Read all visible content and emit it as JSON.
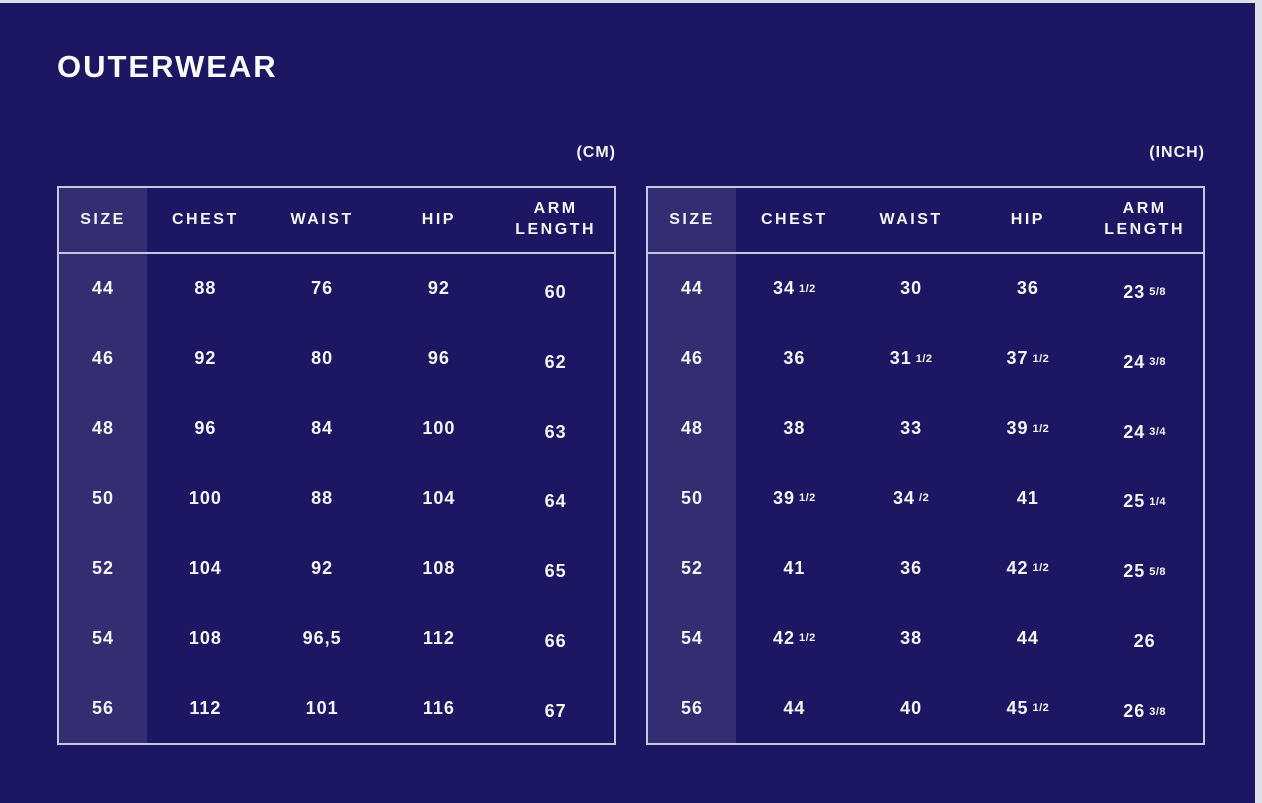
{
  "page": {
    "title": "OUTERWEAR"
  },
  "colors": {
    "background": "#1d1663",
    "table_border": "#c7c6e0",
    "text": "#f5f4f8",
    "size_column_highlight": "rgba(255,255,255,0.10)",
    "page_edge": "#dfdfeb"
  },
  "tables": [
    {
      "id": "cm",
      "unit_label": "(CM)",
      "headers": [
        "SIZE",
        "CHEST",
        "WAIST",
        "HIP",
        "ARM LENGTH"
      ],
      "rows": [
        [
          "44",
          "88",
          "76",
          "92",
          "60"
        ],
        [
          "46",
          "92",
          "80",
          "96",
          "62"
        ],
        [
          "48",
          "96",
          "84",
          "100",
          "63"
        ],
        [
          "50",
          "100",
          "88",
          "104",
          "64"
        ],
        [
          "52",
          "104",
          "92",
          "108",
          "65"
        ],
        [
          "54",
          "108",
          "96,5",
          "112",
          "66"
        ],
        [
          "56",
          "112",
          "101",
          "116",
          "67"
        ]
      ]
    },
    {
      "id": "inch",
      "unit_label": "(INCH)",
      "headers": [
        "SIZE",
        "CHEST",
        "WAIST",
        "HIP",
        "ARM LENGTH"
      ],
      "rows": [
        [
          "44",
          "34 1/2",
          "30",
          "36",
          "23 5/8"
        ],
        [
          "46",
          "36",
          "31 1/2",
          "37 1/2",
          "24 3/8"
        ],
        [
          "48",
          "38",
          "33",
          "39 1/2",
          "24 3/4"
        ],
        [
          "50",
          "39 1/2",
          "34 /2",
          "41",
          "25 1/4"
        ],
        [
          "52",
          "41",
          "36",
          "42 1/2",
          "25 5/8"
        ],
        [
          "54",
          "42 1/2",
          "38",
          "44",
          "26"
        ],
        [
          "56",
          "44",
          "40",
          "45 1/2",
          "26 3/8"
        ]
      ]
    }
  ]
}
